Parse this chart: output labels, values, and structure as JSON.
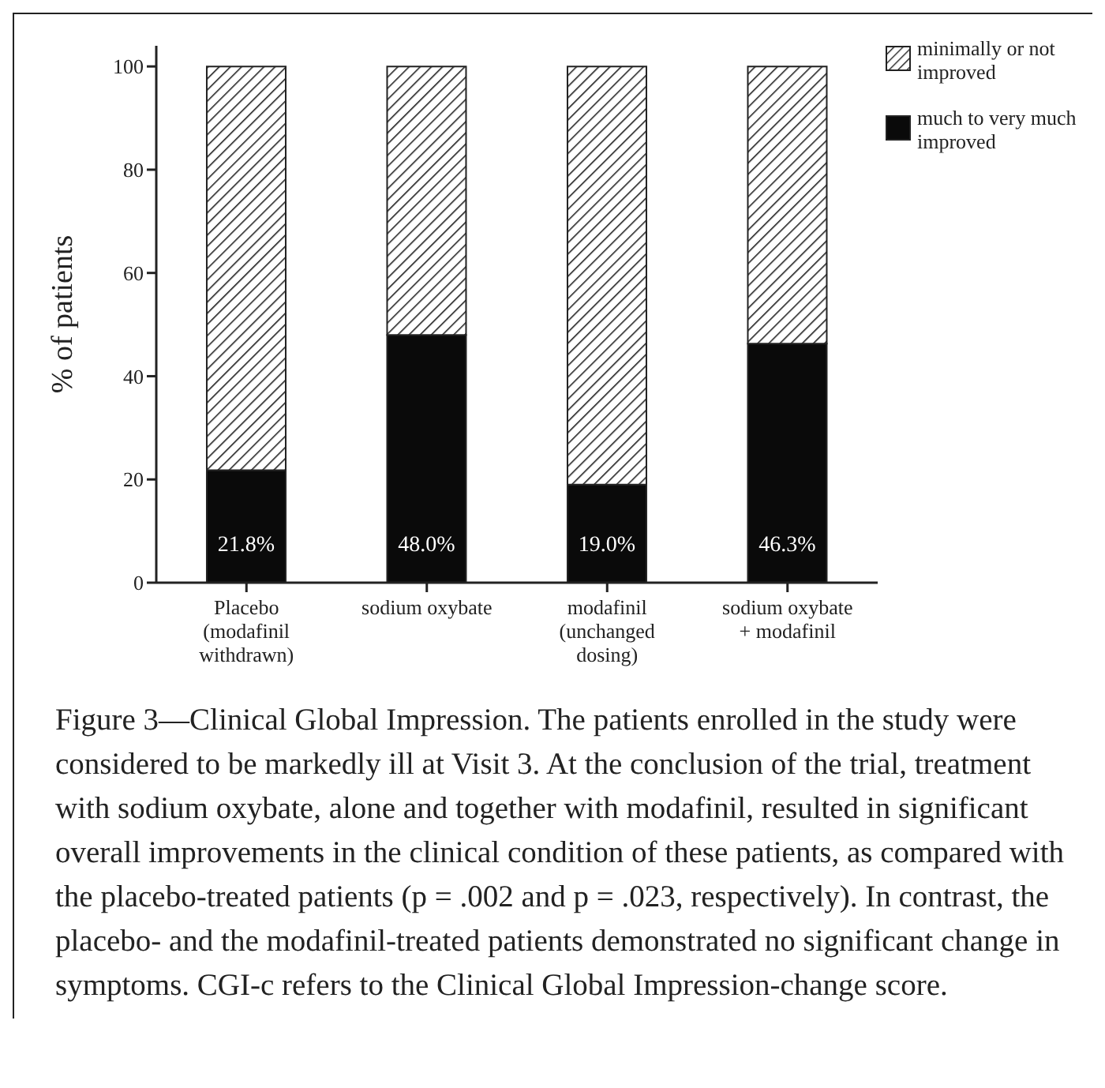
{
  "chart_data": {
    "type": "bar",
    "stacked": true,
    "ylabel": "% of patients",
    "categories": [
      "Placebo (modafinil withdrawn)",
      "sodium oxybate",
      "modafinil (unchanged dosing)",
      "sodium oxybate + modafinil"
    ],
    "series": [
      {
        "name": "much to very much improved",
        "color": "#0a0a0a",
        "values": [
          21.8,
          48.0,
          19.0,
          46.3
        ],
        "value_labels": [
          "21.8%",
          "48.0%",
          "19.0%",
          "46.3%"
        ]
      },
      {
        "name": "minimally or not improved",
        "color": "#222222",
        "values": [
          78.2,
          52.0,
          81.0,
          53.7
        ]
      }
    ],
    "ylim": [
      0,
      104
    ],
    "yticks": [
      0,
      20,
      40,
      60,
      80,
      100
    ],
    "grid": false,
    "legend": "top right",
    "annotations": [
      "Figure 3—Clinical Global Impression. The patients enrolled in the study were considered to be markedly ill at Visit 3. At the conclusion of the trial, treatment with sodium oxybate, alone and together with modafinil, resulted in significant overall improvements in the clinical condition of these patients, as compared with the placebo-treated patients (p = .002 and p = .023, respectively). In contrast, the placebo- and the modafinil-treated patients demonstrated no significant change in symptoms. CGI-c refers to the Clinical Global Impression-change score."
    ]
  }
}
